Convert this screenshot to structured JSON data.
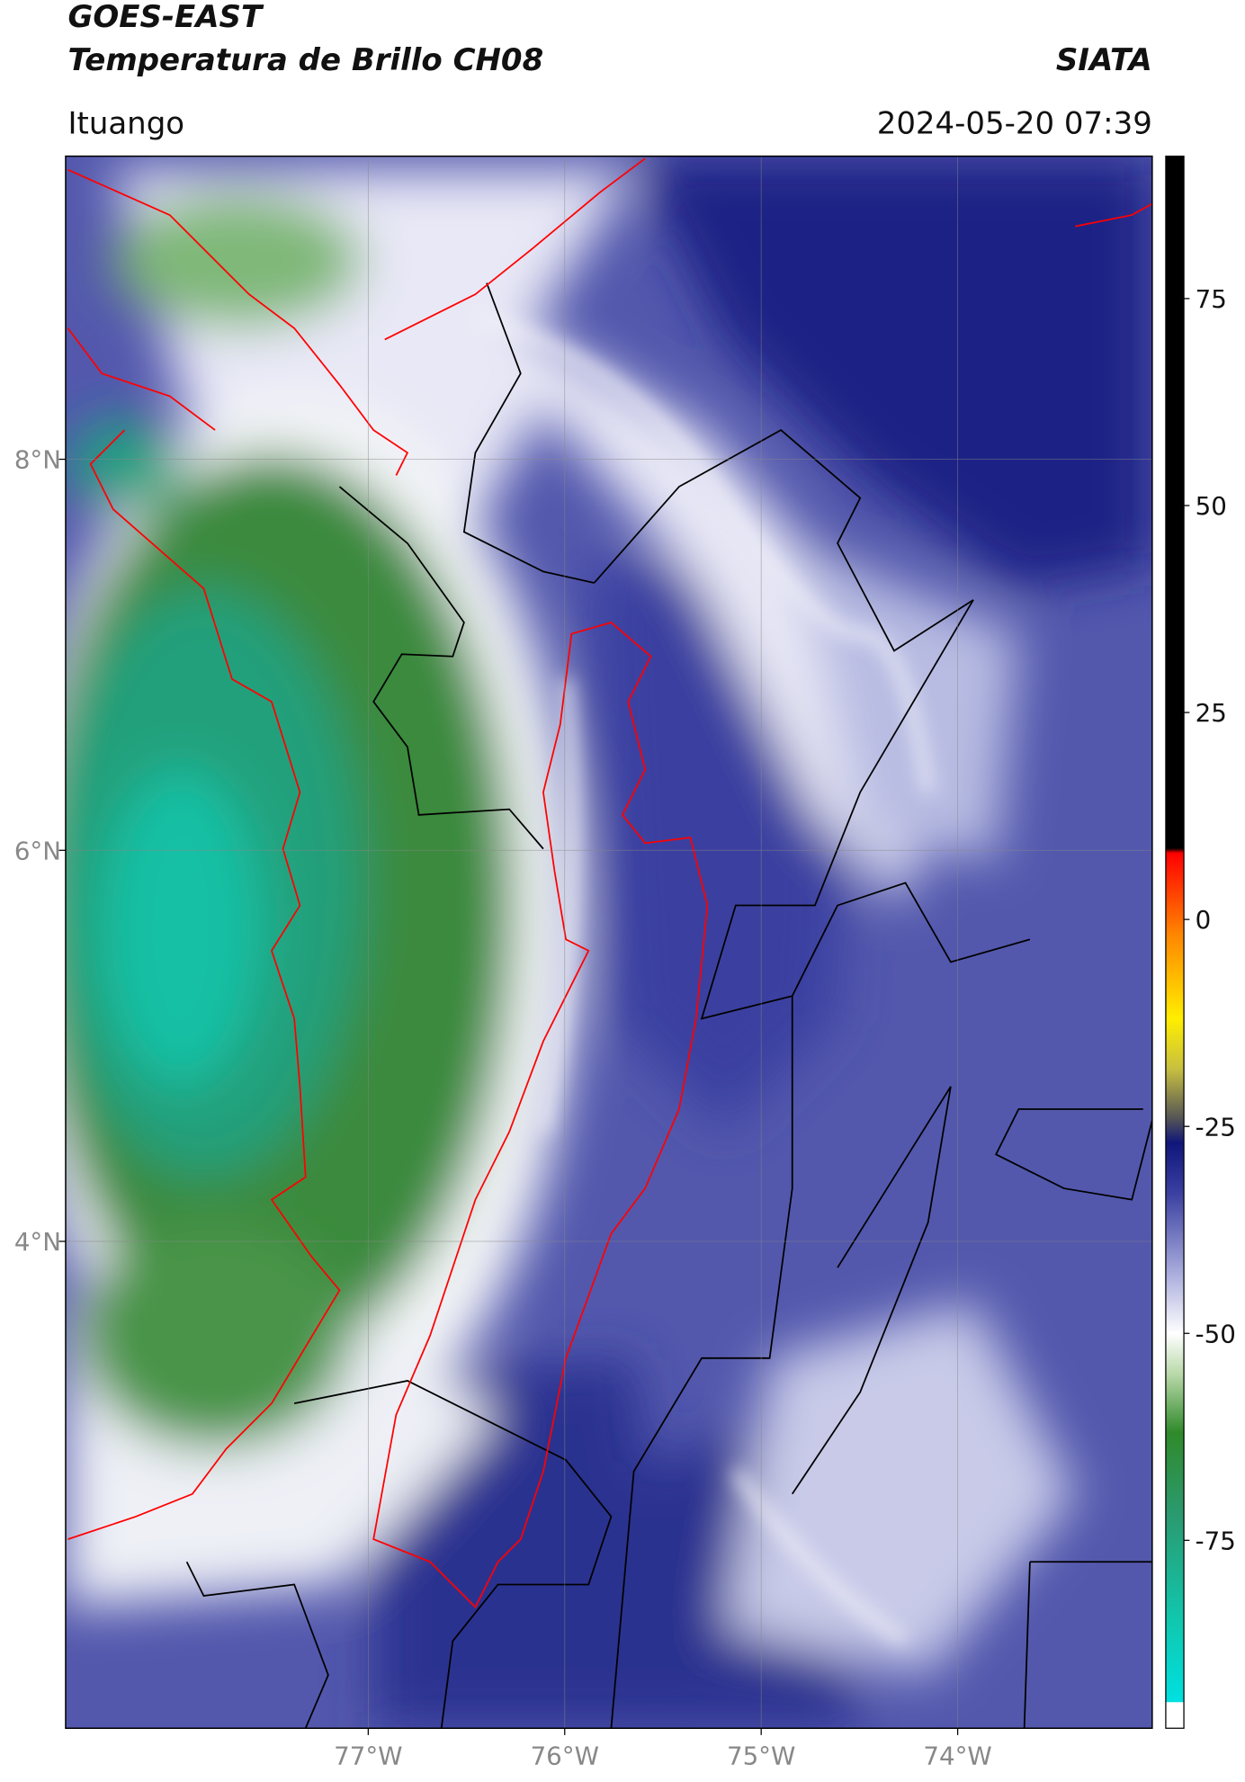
{
  "header": {
    "title": "GOES-EAST",
    "subtitle": "Temperatura de Brillo CH08",
    "brand": "SIATA",
    "location": "Ituango",
    "datetime": "2024-05-20 07:39"
  },
  "map": {
    "xlim": [
      -78.54,
      -73.01
    ],
    "ylim": [
      1.51,
      9.55
    ],
    "xticks": [
      {
        "value": -77,
        "label": "77°W"
      },
      {
        "value": -76,
        "label": "76°W"
      },
      {
        "value": -75,
        "label": "75°W"
      },
      {
        "value": -74,
        "label": "74°W"
      }
    ],
    "yticks": [
      {
        "value": 8,
        "label": "8°N"
      },
      {
        "value": 6,
        "label": "6°N"
      },
      {
        "value": 4,
        "label": "4°N"
      }
    ],
    "grid": true
  },
  "colorbar": {
    "lim": [
      -97.7,
      92.2
    ],
    "ticks": [
      75,
      50,
      25,
      0,
      -25,
      -50,
      -75
    ],
    "stops": [
      {
        "value": -97.7,
        "color": "#ffffff"
      },
      {
        "value": -94.6,
        "color": "#ffffff"
      },
      {
        "value": -94.5,
        "color": "#00e0e0"
      },
      {
        "value": -85,
        "color": "#10c8b0"
      },
      {
        "value": -72,
        "color": "#2a9a70"
      },
      {
        "value": -62,
        "color": "#2f8a2a"
      },
      {
        "value": -55,
        "color": "#b8d8a8"
      },
      {
        "value": -50,
        "color": "#ffffff"
      },
      {
        "value": -42,
        "color": "#a0a4d8"
      },
      {
        "value": -33,
        "color": "#3a3fa0"
      },
      {
        "value": -27,
        "color": "#10167a"
      },
      {
        "value": -24,
        "color": "#555555"
      },
      {
        "value": -18,
        "color": "#c8c040"
      },
      {
        "value": -12,
        "color": "#ffee00"
      },
      {
        "value": -2,
        "color": "#ff8800"
      },
      {
        "value": 8,
        "color": "#ff0000"
      },
      {
        "value": 8.6,
        "color": "#000000"
      },
      {
        "value": 92.2,
        "color": "#000000"
      }
    ]
  }
}
